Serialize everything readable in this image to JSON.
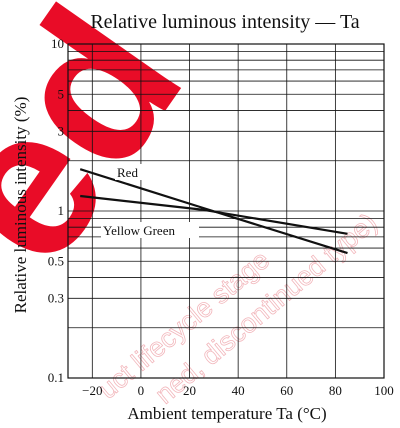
{
  "chart_data": {
    "type": "line",
    "title": "Relative luminous intensity — Ta",
    "xlabel": "Ambient temperature  Ta  (°C)",
    "ylabel": "Relative luminous intensity  (%)",
    "xlim": [
      -30,
      100
    ],
    "ylim": [
      0.1,
      10
    ],
    "yscale": "log",
    "xticks": [
      -20,
      0,
      20,
      40,
      60,
      80,
      100
    ],
    "xtick_labels": [
      "−20",
      "0",
      "20",
      "40",
      "60",
      "80",
      "100"
    ],
    "yticks": [
      10,
      5,
      3,
      1,
      0.5,
      0.3,
      0.1
    ],
    "ytick_labels": [
      "10",
      "5",
      "3",
      "1",
      "0.5",
      "0.3",
      "0.1"
    ],
    "grid": true,
    "series": [
      {
        "name": "Red",
        "x": [
          -25,
          25,
          85
        ],
        "y": [
          1.78,
          1.05,
          0.56
        ]
      },
      {
        "name": "Yellow Green",
        "x": [
          -25,
          25,
          85
        ],
        "y": [
          1.23,
          1.02,
          0.73
        ]
      }
    ]
  },
  "watermark": {
    "big": "ed",
    "line1": "uct lifecycle stage",
    "line2": "ned, discontinued type)"
  },
  "colors": {
    "watermark": "#e8001c",
    "watermark_light": "#f2b7bc",
    "ink": "#111111"
  }
}
